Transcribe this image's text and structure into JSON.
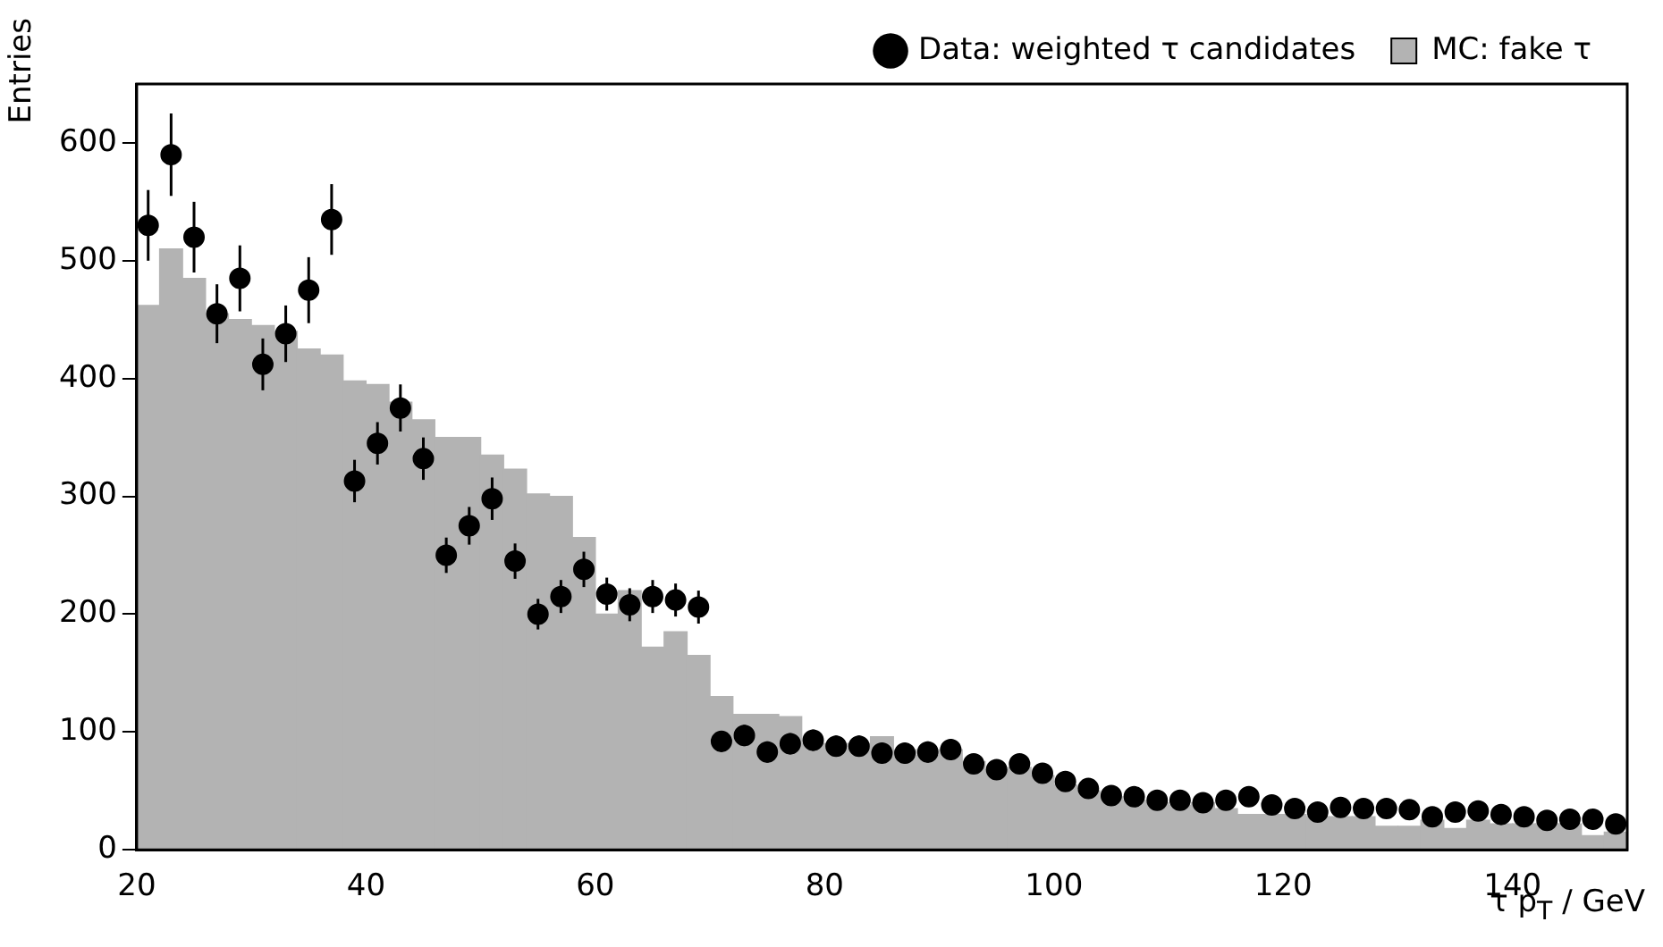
{
  "chart_data": {
    "type": "histogram",
    "xlabel": "τ p$_{T}$ / GeV",
    "ylabel": "Entries",
    "xlim": [
      20,
      150
    ],
    "ylim": [
      0,
      650
    ],
    "xticks": [
      20,
      40,
      60,
      80,
      100,
      120,
      140
    ],
    "yticks": [
      0,
      100,
      200,
      300,
      400,
      500,
      600
    ],
    "legend": "top right",
    "bins": [
      20,
      22,
      24,
      26,
      28,
      30,
      32,
      34,
      36,
      38,
      40,
      42,
      44,
      46,
      48,
      50,
      52,
      54,
      56,
      58,
      60,
      62,
      64,
      66,
      68,
      70,
      72,
      74,
      76,
      78,
      80,
      82,
      84,
      86,
      88,
      90,
      92,
      94,
      96,
      98,
      100,
      102,
      104,
      106,
      108,
      110,
      112,
      114,
      116,
      118,
      120,
      122,
      124,
      126,
      128,
      130,
      132,
      134,
      136,
      138,
      140,
      142,
      144,
      146,
      148,
      150
    ],
    "series": [
      {
        "name": "Data: weighted τ candidates",
        "type": "scatter",
        "color": "#000000",
        "marker": "circle",
        "x": [
          21,
          23,
          25,
          27,
          29,
          31,
          33,
          35,
          37,
          39,
          41,
          43,
          45,
          47,
          49,
          51,
          53,
          55,
          57,
          59,
          61,
          63,
          65,
          67,
          69,
          71,
          73,
          75,
          77,
          79,
          81,
          83,
          85,
          87,
          89,
          91,
          93,
          95,
          97,
          99,
          101,
          103,
          105,
          107,
          109,
          111,
          113,
          115,
          117,
          119,
          121,
          123,
          125,
          127,
          129,
          131,
          133,
          135,
          137,
          139,
          141,
          143,
          145,
          147,
          149
        ],
        "values": [
          530,
          590,
          520,
          455,
          485,
          412,
          438,
          475,
          535,
          313,
          345,
          375,
          332,
          250,
          275,
          298,
          245,
          200,
          215,
          238,
          217,
          208,
          215,
          212,
          206,
          92,
          97,
          83,
          90,
          93,
          88,
          88,
          82,
          82,
          83,
          85,
          73,
          68,
          73,
          65,
          58,
          52,
          46,
          45,
          42,
          42,
          40,
          42,
          45,
          38,
          35,
          32,
          36,
          35,
          35,
          34,
          28,
          32,
          33,
          30,
          28,
          25,
          26,
          26,
          22
        ],
        "errors": [
          30,
          35,
          30,
          25,
          28,
          22,
          24,
          28,
          30,
          18,
          18,
          20,
          18,
          15,
          16,
          18,
          15,
          13,
          14,
          15,
          14,
          14,
          14,
          14,
          14,
          9,
          9,
          9,
          9,
          9,
          9,
          9,
          9,
          9,
          9,
          9,
          8,
          8,
          8,
          8,
          7,
          7,
          6,
          6,
          6,
          6,
          6,
          6,
          6,
          6,
          5,
          5,
          5,
          5,
          5,
          5,
          5,
          5,
          5,
          5,
          5,
          5,
          5,
          5,
          5
        ]
      },
      {
        "name": "MC: fake τ",
        "type": "histogram",
        "color": "#b3b3b3",
        "values": [
          462,
          510,
          485,
          455,
          450,
          445,
          440,
          425,
          420,
          398,
          395,
          380,
          365,
          350,
          350,
          335,
          323,
          302,
          300,
          265,
          200,
          220,
          172,
          185,
          165,
          130,
          115,
          115,
          113,
          90,
          90,
          90,
          96,
          85,
          80,
          85,
          75,
          68,
          70,
          63,
          55,
          50,
          45,
          42,
          40,
          38,
          40,
          35,
          30,
          30,
          30,
          28,
          28,
          28,
          20,
          20,
          25,
          18,
          25,
          22,
          22,
          22,
          22,
          12,
          15
        ]
      }
    ]
  }
}
